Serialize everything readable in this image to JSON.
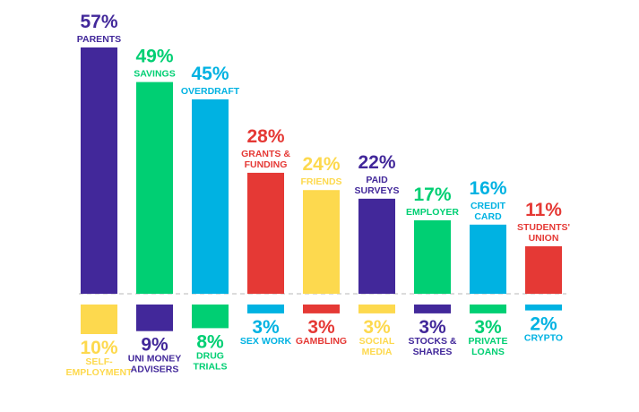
{
  "chart_data": [
    {
      "type": "bar",
      "categories": [
        "PARENTS",
        "SAVINGS",
        "OVERDRAFT",
        "GRANTS & FUNDING",
        "FRIENDS",
        "PAID SURVEYS",
        "EMPLOYER",
        "CREDIT CARD",
        "STUDENTS' UNION"
      ],
      "values": [
        57,
        49,
        45,
        28,
        24,
        22,
        17,
        16,
        11
      ],
      "value_labels": [
        "57%",
        "49%",
        "45%",
        "28%",
        "24%",
        "22%",
        "17%",
        "16%",
        "11%"
      ],
      "label_lines": [
        [
          "PARENTS"
        ],
        [
          "SAVINGS"
        ],
        [
          "OVERDRAFT"
        ],
        [
          "GRANTS &",
          "FUNDING"
        ],
        [
          "FRIENDS"
        ],
        [
          "PAID",
          "SURVEYS"
        ],
        [
          "EMPLOYER"
        ],
        [
          "CREDIT",
          "CARD"
        ],
        [
          "STUDENTS'",
          "UNION"
        ]
      ],
      "colors": [
        "#42289a",
        "#00cf73",
        "#00b2e2",
        "#e53935",
        "#fdd94e",
        "#42289a",
        "#00cf73",
        "#00b2e2",
        "#e53935"
      ],
      "ylim": [
        0,
        57
      ]
    },
    {
      "type": "bar",
      "categories": [
        "SELF-EMPLOYMENT",
        "UNI MONEY ADVISERS",
        "DRUG TRIALS",
        "SEX WORK",
        "GAMBLING",
        "SOCIAL MEDIA",
        "STOCKS & SHARES",
        "PRIVATE LOANS",
        "CRYPTO"
      ],
      "values": [
        10,
        9,
        8,
        3,
        3,
        3,
        3,
        3,
        2
      ],
      "value_labels": [
        "10%",
        "9%",
        "8%",
        "3%",
        "3%",
        "3%",
        "3%",
        "3%",
        "2%"
      ],
      "label_lines": [
        [
          "SELF-",
          "EMPLOYMENT"
        ],
        [
          "UNI MONEY",
          "ADVISERS"
        ],
        [
          "DRUG",
          "TRIALS"
        ],
        [
          "SEX WORK"
        ],
        [
          "GAMBLING"
        ],
        [
          "SOCIAL",
          "MEDIA"
        ],
        [
          "STOCKS &",
          "SHARES"
        ],
        [
          "PRIVATE",
          "LOANS"
        ],
        [
          "CRYPTO"
        ]
      ],
      "colors": [
        "#fdd94e",
        "#42289a",
        "#00cf73",
        "#00b2e2",
        "#e53935",
        "#fdd94e",
        "#42289a",
        "#00cf73",
        "#00b2e2"
      ],
      "direction": "down"
    }
  ],
  "colors": {
    "purple": "#42289a",
    "green": "#00cf73",
    "blue": "#00b2e2",
    "red": "#e53935",
    "yellow": "#fdd94e",
    "baseline": "#c8c8c8"
  }
}
